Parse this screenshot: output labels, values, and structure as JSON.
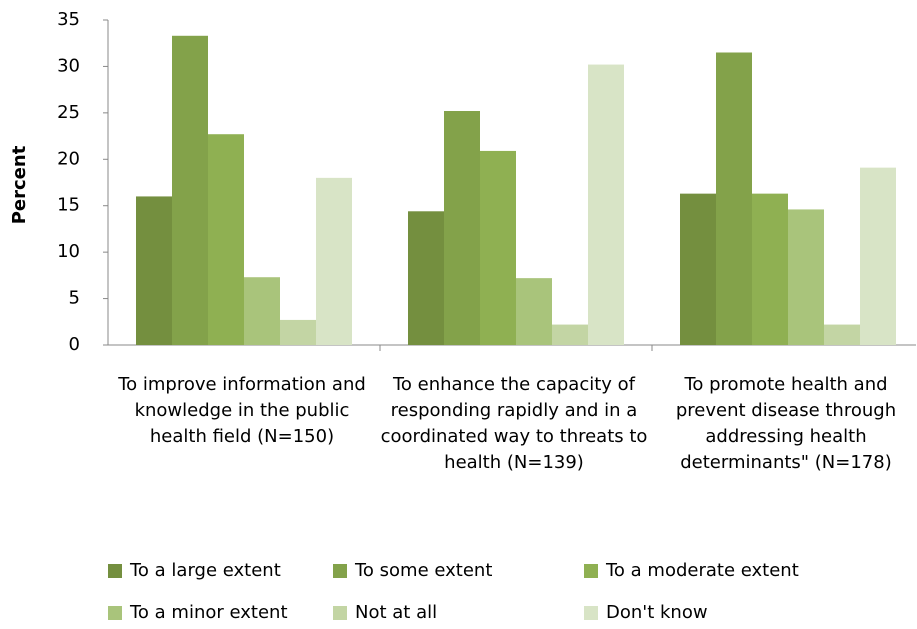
{
  "chart_data": {
    "type": "bar",
    "ylabel": "Percent",
    "categories": [
      "To improve information and knowledge in the public health field (N=150)",
      "To enhance the capacity of responding rapidly and in a coordinated way to threats to health (N=139)",
      "To promote health and prevent disease through addressing health determinants\" (N=178)"
    ],
    "series": [
      {
        "name": "To a large extent",
        "color": "#748f3f",
        "values": [
          16,
          14.4,
          16.3
        ]
      },
      {
        "name": "To some extent",
        "color": "#83a24a",
        "values": [
          33.3,
          25.2,
          31.5
        ]
      },
      {
        "name": "To a moderate extent",
        "color": "#8fb052",
        "values": [
          22.7,
          20.9,
          16.3
        ]
      },
      {
        "name": "To a minor extent",
        "color": "#a9c47b",
        "values": [
          7.3,
          7.2,
          14.6
        ]
      },
      {
        "name": "Not at all",
        "color": "#c3d5a4",
        "values": [
          2.7,
          2.2,
          2.2
        ]
      },
      {
        "name": "Don't know",
        "color": "#d8e4c6",
        "values": [
          18,
          30.2,
          19.1
        ]
      }
    ],
    "ylim": [
      0,
      35
    ],
    "yticks": [
      0,
      5,
      10,
      15,
      20,
      25,
      30,
      35
    ],
    "grid": false,
    "legend": "bottom"
  }
}
